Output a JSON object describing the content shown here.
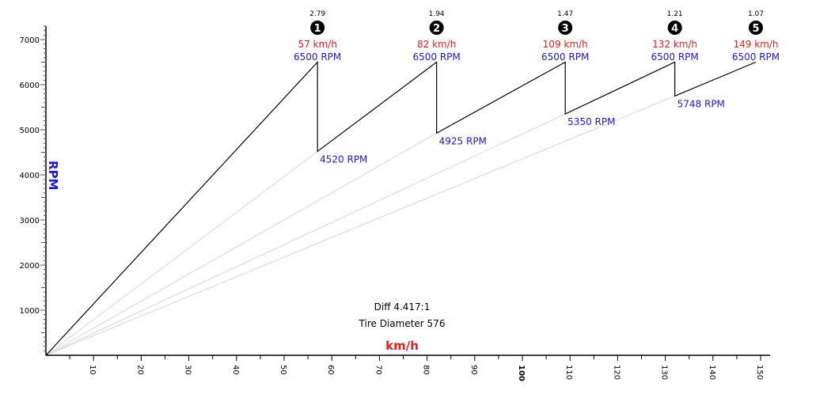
{
  "chart_data": {
    "type": "line",
    "title": "",
    "xlabel": "km/h",
    "ylabel": "RPM",
    "xlim": [
      0,
      152
    ],
    "ylim": [
      0,
      7300
    ],
    "x_ticks": [
      10,
      20,
      30,
      40,
      50,
      60,
      70,
      80,
      90,
      100,
      110,
      120,
      130,
      140,
      150
    ],
    "y_ticks": [
      1000,
      2000,
      3000,
      4000,
      5000,
      6000,
      7000
    ],
    "grid": false,
    "colors": {
      "line": "#000000",
      "ghost": "#d8d8d8",
      "speed": "#e02020",
      "rpm": "#1a1ad0",
      "badge": "#000000"
    },
    "gears": [
      {
        "number": "1",
        "ratio": "2.79",
        "start_kmh": 0,
        "start_rpm": 0,
        "shift_kmh": 57,
        "shift_rpm": 6500,
        "kmh_label": "57 km/h",
        "rpm_label": "6500 RPM"
      },
      {
        "number": "2",
        "ratio": "1.94",
        "start_kmh": 57,
        "start_rpm": 4520,
        "shift_kmh": 82,
        "shift_rpm": 6500,
        "kmh_label": "82 km/h",
        "rpm_label": "6500 RPM",
        "drop_label": "4520 RPM"
      },
      {
        "number": "3",
        "ratio": "1.47",
        "start_kmh": 82,
        "start_rpm": 4925,
        "shift_kmh": 109,
        "shift_rpm": 6500,
        "kmh_label": "109 km/h",
        "rpm_label": "6500 RPM",
        "drop_label": "4925 RPM"
      },
      {
        "number": "4",
        "ratio": "1.21",
        "start_kmh": 109,
        "start_rpm": 5350,
        "shift_kmh": 132,
        "shift_rpm": 6500,
        "kmh_label": "132 km/h",
        "rpm_label": "6500 RPM",
        "drop_label": "5350 RPM"
      },
      {
        "number": "5",
        "ratio": "1.07",
        "start_kmh": 132,
        "start_rpm": 5748,
        "shift_kmh": 149,
        "shift_rpm": 6500,
        "kmh_label": "149 km/h",
        "rpm_label": "6500 RPM",
        "drop_label": "5748 RPM"
      }
    ],
    "annotations": {
      "diff": "Diff 4.417:1",
      "tire": "Tire Diameter 576"
    }
  }
}
